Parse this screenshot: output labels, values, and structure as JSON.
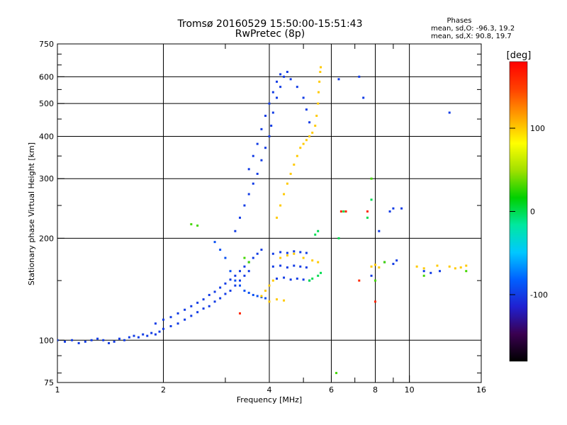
{
  "chart_data": {
    "type": "scatter",
    "title_line1": "Tromsø 20160529 15:50:00-15:51:43",
    "title_line2": "RwPretec (8p)",
    "xlabel": "Frequency [MHz]",
    "ylabel": "Stationary phase Virtual Height [km]",
    "x_scale": "log",
    "y_scale": "log",
    "xlim": [
      1,
      16
    ],
    "ylim": [
      75,
      750
    ],
    "x_ticks": [
      1,
      2,
      4,
      6,
      8,
      10,
      16
    ],
    "x_tick_labels": [
      "1",
      "2",
      "4",
      "6",
      "8",
      "10",
      "16"
    ],
    "x_gridlines": [
      2,
      4,
      6,
      8,
      10
    ],
    "x_minor_ticks": [
      3,
      5,
      7,
      9
    ],
    "y_ticks": [
      75,
      100,
      200,
      300,
      400,
      500,
      600,
      750
    ],
    "y_tick_labels": [
      "75",
      "100",
      "200",
      "300",
      "400",
      "500",
      "600",
      "750"
    ],
    "y_gridlines": [
      100,
      200,
      300,
      400,
      500,
      600
    ],
    "y_minor_ticks": [
      80,
      90,
      150,
      250,
      350,
      450,
      550,
      650,
      700
    ],
    "grid": true,
    "stats": {
      "header": "Phases",
      "line_o": "mean, sd,O: -96.3, 19.2",
      "line_x": "mean, sd,X:  90.8, 19.7"
    },
    "colorbar": {
      "label": "[deg]",
      "range": [
        -180,
        180
      ],
      "tick_values": [
        100,
        0,
        -100
      ],
      "tick_labels": [
        "100",
        "0",
        "-100"
      ],
      "stops": [
        "#000000",
        "#3a0050",
        "#2020d0",
        "#0060ff",
        "#00c8ff",
        "#00e8a0",
        "#00d000",
        "#a0e000",
        "#ffff00",
        "#ffa000",
        "#ff4000",
        "#ff0000"
      ]
    },
    "series": [
      {
        "phase": -100,
        "points": [
          [
            1.0,
            100
          ],
          [
            1.05,
            99
          ],
          [
            1.1,
            100
          ],
          [
            1.15,
            98
          ],
          [
            1.2,
            99
          ],
          [
            1.25,
            100
          ],
          [
            1.3,
            101
          ],
          [
            1.35,
            100
          ],
          [
            1.4,
            98
          ],
          [
            1.45,
            99
          ],
          [
            1.5,
            101
          ],
          [
            1.55,
            100
          ],
          [
            1.6,
            102
          ],
          [
            1.65,
            103
          ],
          [
            1.7,
            102
          ],
          [
            1.75,
            104
          ],
          [
            1.8,
            103
          ],
          [
            1.85,
            105
          ],
          [
            1.9,
            104
          ],
          [
            1.95,
            106
          ],
          [
            2.0,
            108
          ],
          [
            2.1,
            110
          ],
          [
            2.2,
            112
          ],
          [
            2.3,
            115
          ],
          [
            2.4,
            118
          ],
          [
            2.5,
            121
          ],
          [
            2.6,
            124
          ],
          [
            2.7,
            126
          ],
          [
            2.8,
            130
          ],
          [
            2.9,
            133
          ],
          [
            3.0,
            137
          ],
          [
            3.1,
            140
          ],
          [
            3.2,
            145
          ],
          [
            3.3,
            150
          ],
          [
            3.4,
            155
          ],
          [
            3.5,
            160
          ]
        ]
      },
      {
        "phase": -100,
        "points": [
          [
            1.9,
            112
          ],
          [
            2.0,
            115
          ],
          [
            2.1,
            117
          ],
          [
            2.2,
            120
          ],
          [
            2.3,
            123
          ],
          [
            2.4,
            126
          ],
          [
            2.5,
            129
          ],
          [
            2.6,
            132
          ],
          [
            2.7,
            136
          ],
          [
            2.8,
            139
          ],
          [
            2.9,
            143
          ],
          [
            3.0,
            147
          ],
          [
            3.1,
            151
          ],
          [
            3.2,
            155
          ],
          [
            3.3,
            160
          ],
          [
            3.4,
            165
          ],
          [
            3.5,
            170
          ],
          [
            3.6,
            175
          ],
          [
            3.7,
            180
          ],
          [
            3.8,
            185
          ]
        ]
      },
      {
        "phase": -100,
        "points": [
          [
            3.2,
            210
          ],
          [
            3.3,
            230
          ],
          [
            3.4,
            250
          ],
          [
            3.5,
            270
          ],
          [
            3.6,
            290
          ],
          [
            3.7,
            310
          ],
          [
            3.8,
            340
          ],
          [
            3.9,
            370
          ],
          [
            4.0,
            400
          ],
          [
            4.05,
            430
          ],
          [
            4.1,
            470
          ],
          [
            4.2,
            520
          ],
          [
            4.3,
            560
          ],
          [
            4.4,
            600
          ],
          [
            4.5,
            620
          ]
        ]
      },
      {
        "phase": -100,
        "points": [
          [
            3.5,
            320
          ],
          [
            3.6,
            350
          ],
          [
            3.7,
            380
          ],
          [
            3.8,
            420
          ],
          [
            3.9,
            460
          ],
          [
            4.0,
            500
          ],
          [
            4.1,
            540
          ],
          [
            4.2,
            580
          ],
          [
            4.3,
            610
          ],
          [
            4.6,
            590
          ],
          [
            4.8,
            560
          ],
          [
            5.0,
            520
          ],
          [
            5.1,
            480
          ],
          [
            5.2,
            440
          ]
        ]
      },
      {
        "phase": -100,
        "points": [
          [
            4.1,
            180
          ],
          [
            4.3,
            182
          ],
          [
            4.5,
            181
          ],
          [
            4.7,
            183
          ],
          [
            4.9,
            182
          ],
          [
            5.1,
            181
          ],
          [
            4.1,
            165
          ],
          [
            4.3,
            166
          ],
          [
            4.5,
            164
          ],
          [
            4.7,
            166
          ],
          [
            4.9,
            165
          ],
          [
            5.1,
            164
          ],
          [
            4.2,
            152
          ],
          [
            4.4,
            153
          ],
          [
            4.6,
            151
          ],
          [
            4.8,
            152
          ],
          [
            5.0,
            151
          ],
          [
            5.2,
            150
          ]
        ]
      },
      {
        "phase": -90,
        "points": [
          [
            3.4,
            140
          ],
          [
            3.5,
            138
          ],
          [
            3.6,
            136
          ],
          [
            3.7,
            135
          ],
          [
            3.8,
            134
          ],
          [
            3.9,
            133
          ],
          [
            3.3,
            145
          ],
          [
            3.2,
            150
          ],
          [
            3.1,
            160
          ],
          [
            3.0,
            175
          ],
          [
            2.9,
            185
          ],
          [
            2.8,
            195
          ]
        ]
      },
      {
        "phase": 100,
        "points": [
          [
            4.2,
            230
          ],
          [
            4.3,
            250
          ],
          [
            4.4,
            270
          ],
          [
            4.5,
            290
          ],
          [
            4.6,
            310
          ],
          [
            4.7,
            330
          ],
          [
            4.8,
            350
          ],
          [
            4.9,
            370
          ],
          [
            5.0,
            380
          ],
          [
            5.1,
            390
          ],
          [
            5.2,
            400
          ],
          [
            5.3,
            410
          ],
          [
            5.4,
            430
          ],
          [
            5.45,
            460
          ],
          [
            5.5,
            500
          ],
          [
            5.52,
            540
          ],
          [
            5.55,
            580
          ],
          [
            5.58,
            620
          ],
          [
            5.6,
            640
          ]
        ]
      },
      {
        "phase": 100,
        "points": [
          [
            3.8,
            135
          ],
          [
            3.9,
            140
          ],
          [
            4.0,
            145
          ],
          [
            4.1,
            150
          ],
          [
            4.3,
            175
          ],
          [
            4.5,
            178
          ],
          [
            4.7,
            180
          ],
          [
            5.0,
            175
          ],
          [
            5.3,
            172
          ],
          [
            5.5,
            170
          ],
          [
            4.0,
            130
          ],
          [
            4.2,
            132
          ],
          [
            4.4,
            131
          ]
        ]
      },
      {
        "phase": 100,
        "points": [
          [
            7.8,
            165
          ],
          [
            8.0,
            167
          ],
          [
            8.2,
            164
          ],
          [
            10.5,
            165
          ],
          [
            11.0,
            163
          ],
          [
            12.0,
            166
          ],
          [
            13.0,
            165
          ],
          [
            14.0,
            164
          ],
          [
            14.5,
            166
          ],
          [
            13.5,
            163
          ]
        ]
      },
      {
        "phase": 0,
        "points": [
          [
            5.2,
            150
          ],
          [
            5.3,
            152
          ],
          [
            5.5,
            155
          ],
          [
            5.6,
            158
          ],
          [
            5.4,
            205
          ],
          [
            5.5,
            210
          ],
          [
            6.3,
            200
          ],
          [
            6.5,
            240
          ],
          [
            7.6,
            230
          ],
          [
            7.8,
            260
          ]
        ]
      },
      {
        "phase": -100,
        "points": [
          [
            7.8,
            155
          ],
          [
            8.5,
            170
          ],
          [
            9.0,
            168
          ],
          [
            9.2,
            172
          ],
          [
            8.8,
            240
          ],
          [
            9.0,
            245
          ],
          [
            11.0,
            160
          ],
          [
            11.5,
            158
          ],
          [
            12.2,
            160
          ],
          [
            7.2,
            600
          ],
          [
            7.4,
            520
          ],
          [
            6.3,
            590
          ],
          [
            13.0,
            470
          ],
          [
            8.2,
            210
          ],
          [
            9.5,
            245
          ]
        ]
      },
      {
        "phase": 30,
        "points": [
          [
            2.4,
            220
          ],
          [
            2.5,
            218
          ],
          [
            3.5,
            170
          ],
          [
            3.4,
            175
          ],
          [
            8.5,
            170
          ],
          [
            11.0,
            155
          ],
          [
            14.5,
            160
          ],
          [
            6.2,
            80
          ],
          [
            7.8,
            300
          ],
          [
            8.0,
            150
          ]
        ]
      },
      {
        "phase": 160,
        "points": [
          [
            3.3,
            120
          ],
          [
            7.6,
            240
          ],
          [
            8.0,
            130
          ],
          [
            6.6,
            240
          ],
          [
            7.2,
            150
          ],
          [
            6.4,
            240
          ]
        ]
      }
    ]
  }
}
